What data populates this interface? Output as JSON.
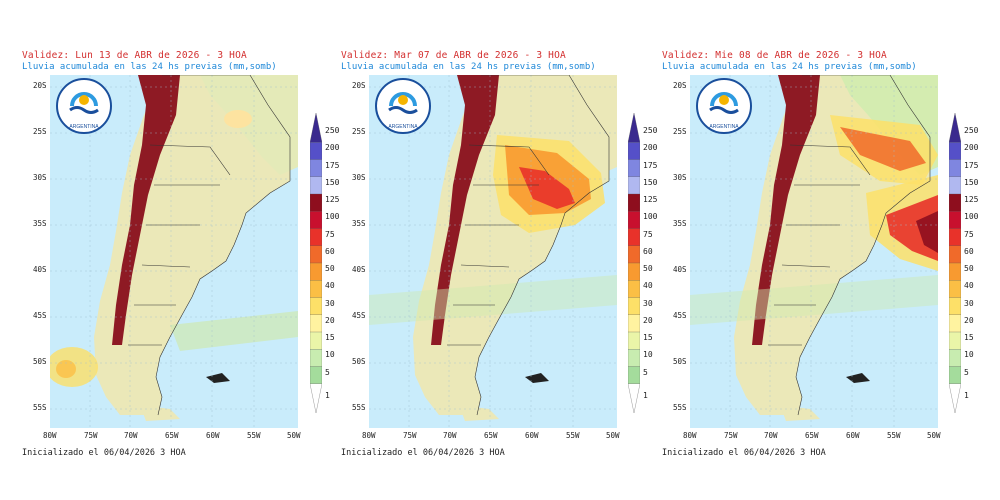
{
  "panels": [
    {
      "validity": "Validez: Lun 13 de ABR de 2026 - 3 HOA",
      "subtitle": "Lluvia acumulada en las 24 hs previas (mm,somb)",
      "init": "Inicializado el 06/04/2026 3 HOA"
    },
    {
      "validity": "Validez: Mar 07 de ABR de 2026 - 3 HOA",
      "subtitle": "Lluvia acumulada en las 24 hs previas (mm,somb)",
      "init": "Inicializado el 06/04/2026 3 HOA"
    },
    {
      "validity": "Validez: Mie 08 de ABR de 2026 - 3 HOA",
      "subtitle": "Lluvia acumulada en las 24 hs previas (mm,somb)",
      "init": "Inicializado el 06/04/2026 3 HOA"
    }
  ],
  "lat_labels": [
    "20S",
    "25S",
    "30S",
    "35S",
    "40S",
    "45S",
    "50S",
    "55S"
  ],
  "lon_labels": [
    "80W",
    "75W",
    "70W",
    "65W",
    "60W",
    "55W",
    "50W"
  ],
  "colorbar": {
    "labels": [
      "250",
      "200",
      "175",
      "150",
      "125",
      "100",
      "75",
      "60",
      "50",
      "40",
      "30",
      "20",
      "15",
      "10",
      "5",
      "1"
    ],
    "colors": [
      "#3a2a8e",
      "#5550c8",
      "#7f86e0",
      "#b0b8f0",
      "#8e0e1e",
      "#c8102e",
      "#e8322a",
      "#f06a2a",
      "#f89a30",
      "#fbbf45",
      "#fde068",
      "#fff3a0",
      "#eaf5a8",
      "#c8ecb0",
      "#a4dc9c",
      "#ffffff"
    ]
  },
  "logo_text": "ARGENTINA",
  "colors": {
    "ocean": "#c9ecfb",
    "land": "#ebe8b8",
    "andes": "#8e1a24",
    "title": "#d32f2f",
    "subtitle": "#1e88d8"
  }
}
